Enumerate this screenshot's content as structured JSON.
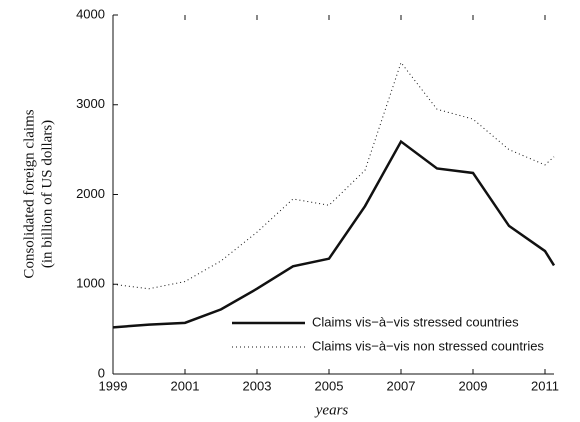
{
  "chart_data": {
    "type": "line",
    "y_label": [
      "Consolidated foreign claims",
      "(in billion of US dollars)"
    ],
    "x_label": "years",
    "x": [
      1999,
      2000,
      2001,
      2002,
      2003,
      2004,
      2005,
      2006,
      2007,
      2008,
      2009,
      2010,
      2011,
      2011.25
    ],
    "series": [
      {
        "name": "Claims vis−à−vis stressed countries",
        "color": "#111111",
        "style": "solid",
        "values": [
          520,
          550,
          570,
          720,
          950,
          1200,
          1285,
          1870,
          2590,
          2290,
          2240,
          1650,
          1370,
          1210
        ]
      },
      {
        "name": "Claims vis−à−vis non stressed countries",
        "color": "#111111",
        "style": "dotted",
        "values": [
          1000,
          950,
          1030,
          1260,
          1580,
          1950,
          1880,
          2270,
          3470,
          2950,
          2840,
          2500,
          2330,
          2420
        ]
      }
    ],
    "xlim": [
      1999,
      2011.25
    ],
    "xticks": [
      1999,
      2001,
      2003,
      2005,
      2007,
      2009,
      2011
    ],
    "ylim": [
      0,
      4000
    ],
    "yticks": [
      0,
      1000,
      2000,
      3000,
      4000
    ]
  }
}
